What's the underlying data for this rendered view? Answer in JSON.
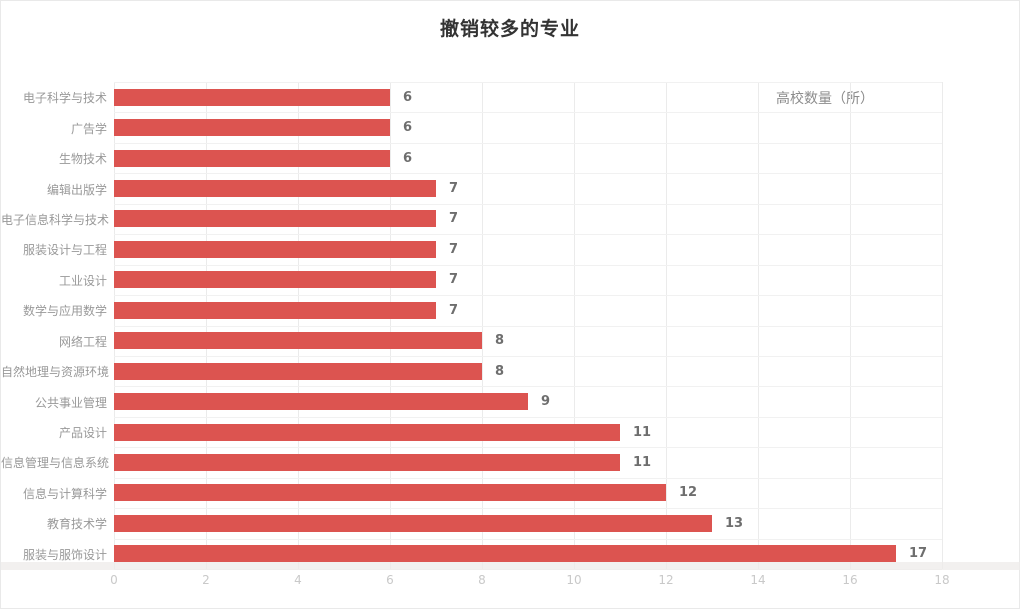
{
  "page": {
    "title": "撤销较多的专业",
    "axis_name": "高校数量（所）"
  },
  "colors": {
    "bar": "#dc5450",
    "title": "#333333",
    "category_label": "#999999",
    "value_label": "#6e6e6e",
    "tick_label": "#c9c9c9",
    "grid_vertical": "#ebebeb",
    "grid_horizontal": "#f1f1f1"
  },
  "chart_data": {
    "type": "bar",
    "orientation": "horizontal",
    "title": "撤销较多的专业",
    "xlabel": "高校数量（所）",
    "ylabel": "",
    "categories": [
      "电子科学与技术",
      "广告学",
      "生物技术",
      "编辑出版学",
      "电子信息科学与技术",
      "服装设计与工程",
      "工业设计",
      "数学与应用数学",
      "网络工程",
      "自然地理与资源环境",
      "公共事业管理",
      "产品设计",
      "信息管理与信息系统",
      "信息与计算科学",
      "教育技术学",
      "服装与服饰设计"
    ],
    "values": [
      6,
      6,
      6,
      7,
      7,
      7,
      7,
      7,
      8,
      8,
      9,
      11,
      11,
      12,
      13,
      17
    ],
    "xlim": [
      0,
      18
    ],
    "xticks": [
      0,
      2,
      4,
      6,
      8,
      10,
      12,
      14,
      16,
      18
    ],
    "grid": true,
    "legend_position": "none",
    "bar_color": "#dc5450"
  }
}
